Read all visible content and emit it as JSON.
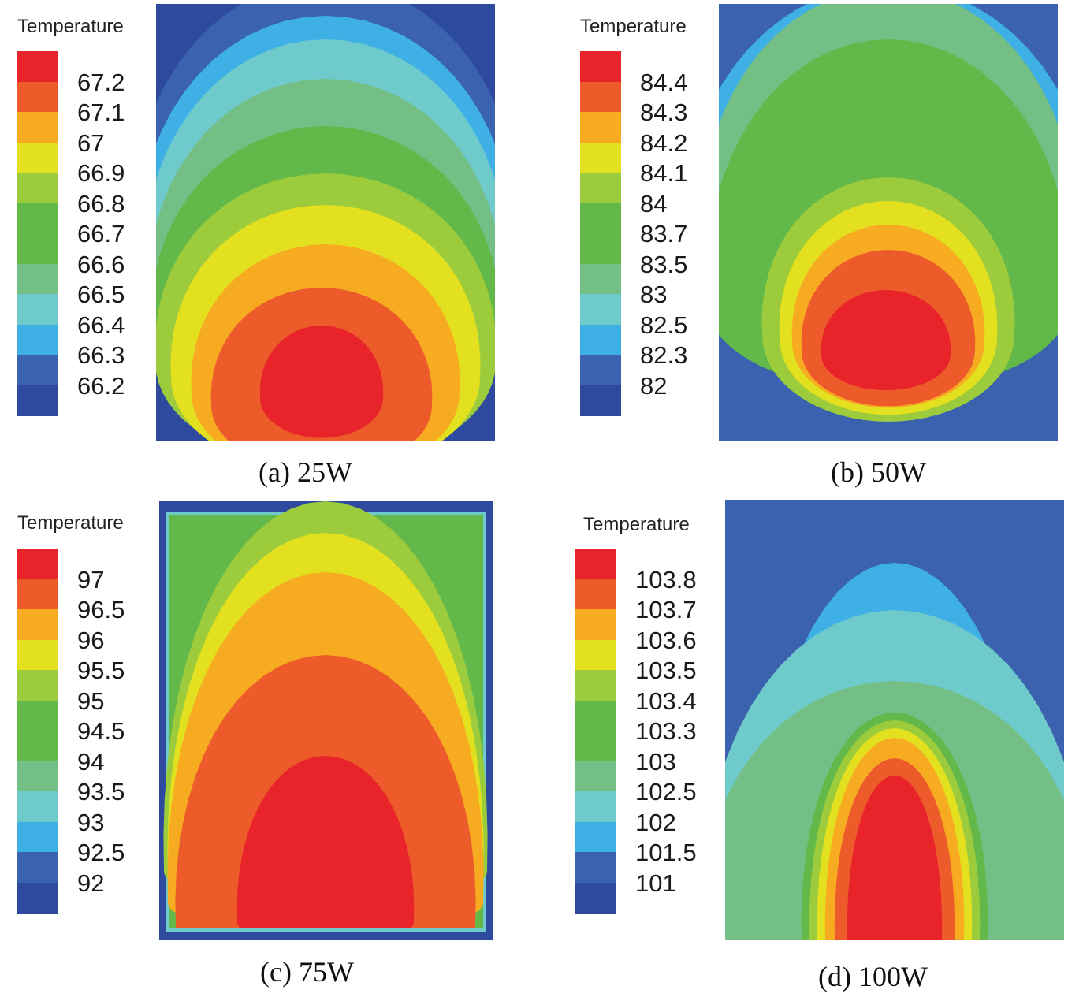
{
  "chart_data": [
    {
      "type": "heatmap",
      "panel": "a",
      "caption": "(a) 25W",
      "legend_title": "Temperature",
      "levels": [
        "67.2",
        "67.1",
        "67",
        "66.9",
        "66.8",
        "66.7",
        "66.6",
        "66.5",
        "66.4",
        "66.3",
        "66.2"
      ],
      "colors": [
        "#e8232a",
        "#ee5b2b",
        "#f7ab21",
        "#e3e11f",
        "#9ccb3c",
        "#62b848",
        "#62b848",
        "#73bf86",
        "#6fcbcb",
        "#3fb0e6",
        "#3b62ae",
        "#2d4a9e"
      ],
      "hotspot": "bottom-center"
    },
    {
      "type": "heatmap",
      "panel": "b",
      "caption": "(b) 50W",
      "legend_title": "Temperature",
      "levels": [
        "84.4",
        "84.3",
        "84.2",
        "84.1",
        "84",
        "83.7",
        "83.5",
        "83",
        "82.5",
        "82.3",
        "82"
      ],
      "colors": [
        "#e8232a",
        "#ee5b2b",
        "#f7ab21",
        "#e3e11f",
        "#9ccb3c",
        "#62b848",
        "#62b848",
        "#73bf86",
        "#6fcbcb",
        "#3fb0e6",
        "#3b62ae",
        "#2d4a9e"
      ],
      "hotspot": "lower-center"
    },
    {
      "type": "heatmap",
      "panel": "c",
      "caption": "(c) 75W",
      "legend_title": "Temperature",
      "levels": [
        "97",
        "96.5",
        "96",
        "95.5",
        "95",
        "94.5",
        "94",
        "93.5",
        "93",
        "92.5",
        "92"
      ],
      "colors": [
        "#e8232a",
        "#ee5b2b",
        "#f7ab21",
        "#e3e11f",
        "#9ccb3c",
        "#62b848",
        "#62b848",
        "#73bf86",
        "#6fcbcb",
        "#3fb0e6",
        "#3b62ae",
        "#2d4a9e"
      ],
      "hotspot": "bottom-center"
    },
    {
      "type": "heatmap",
      "panel": "d",
      "caption": "(d) 100W",
      "legend_title": "Temperature",
      "levels": [
        "103.8",
        "103.7",
        "103.6",
        "103.5",
        "103.4",
        "103.3",
        "103",
        "102.5",
        "102",
        "101.5",
        "101"
      ],
      "colors": [
        "#e8232a",
        "#ee5b2b",
        "#f7ab21",
        "#e3e11f",
        "#9ccb3c",
        "#62b848",
        "#62b848",
        "#73bf86",
        "#6fcbcb",
        "#3fb0e6",
        "#3b62ae",
        "#2d4a9e"
      ],
      "hotspot": "bottom-center"
    }
  ]
}
